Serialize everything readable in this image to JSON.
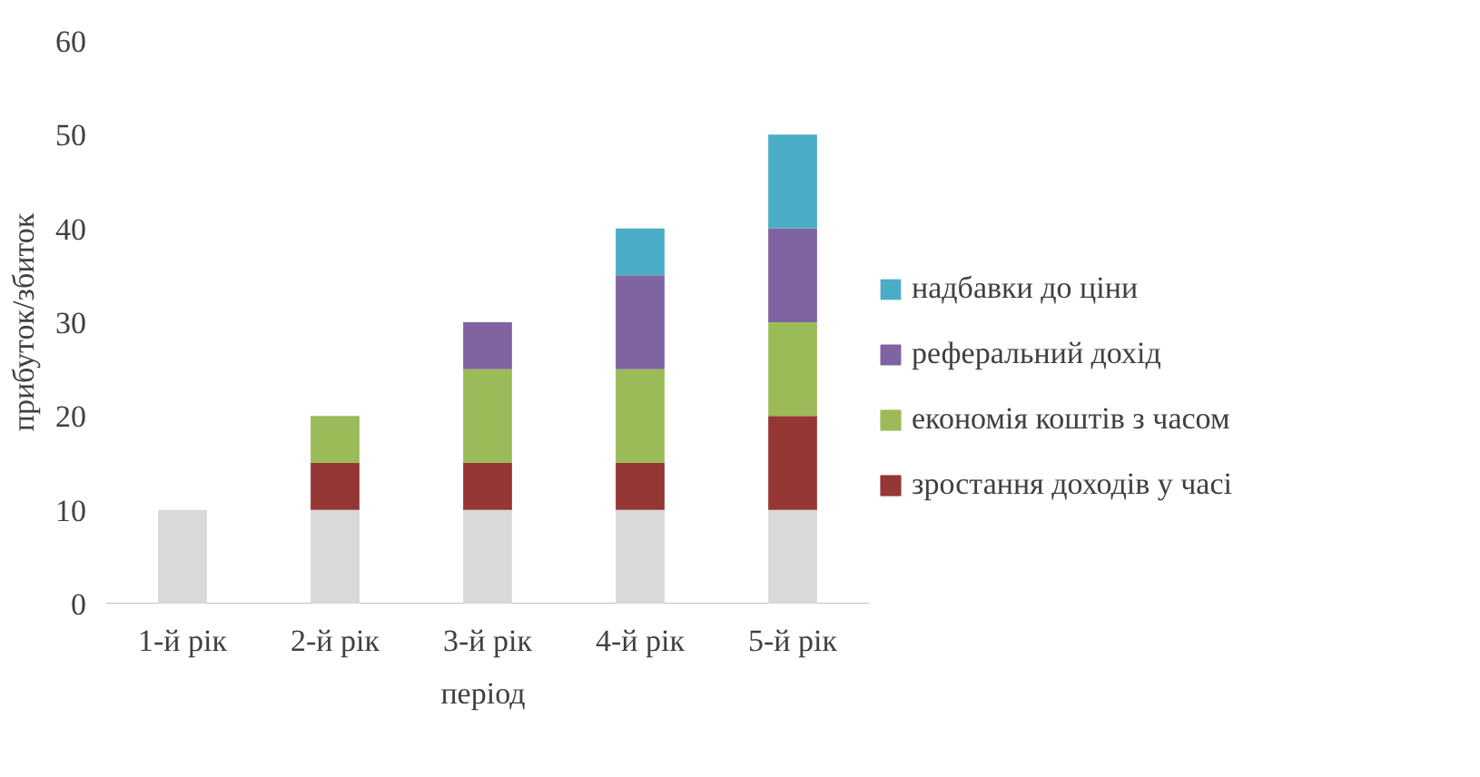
{
  "chart_data": {
    "type": "bar",
    "stacked": true,
    "xlabel": "період",
    "ylabel": "прибуток/збиток",
    "categories": [
      "1-й рік",
      "2-й рік",
      "3-й рік",
      "4-й рік",
      "5-й рік"
    ],
    "series": [
      {
        "color": "#d9d9d9",
        "values": [
          10,
          10,
          10,
          10,
          10
        ]
      },
      {
        "name": "зростання доходів у часі",
        "color": "#953735",
        "values": [
          null,
          5,
          5,
          5,
          10
        ]
      },
      {
        "name": "економія коштів з часом",
        "color": "#9bbb59",
        "values": [
          null,
          5,
          10,
          10,
          10
        ]
      },
      {
        "name": "реферальний дохід",
        "color": "#8064a2",
        "values": [
          null,
          null,
          5,
          10,
          10
        ]
      },
      {
        "name": "надбавки до ціни",
        "color": "#4bacc6",
        "values": [
          null,
          null,
          null,
          5,
          10
        ]
      }
    ],
    "ylim": [
      0,
      60
    ],
    "yticks": [
      0,
      10,
      20,
      30,
      40,
      50,
      60
    ],
    "grid": false,
    "legend": "right"
  }
}
